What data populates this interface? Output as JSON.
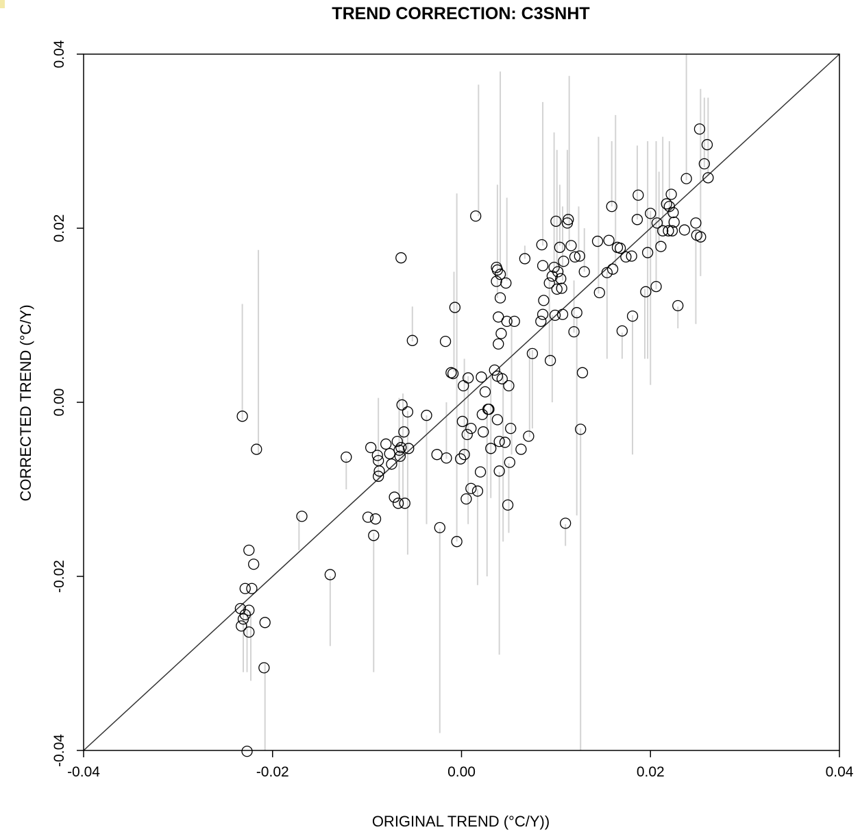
{
  "chart_data": {
    "type": "scatter",
    "title": "TREND CORRECTION: C3SNHT",
    "xlabel": "ORIGINAL TREND (°C/Y))",
    "ylabel": "CORRECTED TREND (°C/Y)",
    "xlim": [
      -0.04,
      0.04
    ],
    "ylim": [
      -0.04,
      0.04
    ],
    "x_ticks": [
      "-0.04",
      "-0.02",
      "0.00",
      "0.02",
      "0.04"
    ],
    "y_ticks": [
      "-0.04",
      "-0.02",
      "0.00",
      "0.02",
      "0.04"
    ],
    "reference_line": "y = x",
    "grid": false,
    "point_color": "#000000",
    "error_bar_color": "#d3d3d3",
    "points": [
      {
        "x": -0.0234,
        "y": -0.0237
      },
      {
        "x": -0.0233,
        "y": -0.0257
      },
      {
        "x": -0.0231,
        "y": -0.0249
      },
      {
        "x": -0.0229,
        "y": -0.0244
      },
      {
        "x": -0.0232,
        "y": -0.0016
      },
      {
        "x": -0.0229,
        "y": -0.0214
      },
      {
        "x": -0.0225,
        "y": -0.017
      },
      {
        "x": -0.0225,
        "y": -0.0239
      },
      {
        "x": -0.0225,
        "y": -0.0264
      },
      {
        "x": -0.0222,
        "y": -0.0214
      },
      {
        "x": -0.022,
        "y": -0.0186
      },
      {
        "x": -0.0217,
        "y": -0.0054
      },
      {
        "x": -0.0208,
        "y": -0.0253
      },
      {
        "x": -0.0209,
        "y": -0.0305
      },
      {
        "x": -0.0227,
        "y": -0.0401
      },
      {
        "x": -0.0169,
        "y": -0.0131
      },
      {
        "x": -0.0139,
        "y": -0.0198
      },
      {
        "x": -0.0122,
        "y": -0.0063
      },
      {
        "x": -0.0099,
        "y": -0.0132
      },
      {
        "x": -0.0096,
        "y": -0.0052
      },
      {
        "x": -0.0093,
        "y": -0.0153
      },
      {
        "x": -0.0091,
        "y": -0.0134
      },
      {
        "x": -0.0089,
        "y": -0.0061
      },
      {
        "x": -0.0088,
        "y": -0.0067
      },
      {
        "x": -0.0088,
        "y": -0.0085
      },
      {
        "x": -0.0087,
        "y": -0.0079
      },
      {
        "x": -0.008,
        "y": -0.0048
      },
      {
        "x": -0.0076,
        "y": -0.0059
      },
      {
        "x": -0.0074,
        "y": -0.0071
      },
      {
        "x": -0.0071,
        "y": -0.0109
      },
      {
        "x": -0.0068,
        "y": -0.0045
      },
      {
        "x": -0.0067,
        "y": -0.0116
      },
      {
        "x": -0.0066,
        "y": -0.0055
      },
      {
        "x": -0.0065,
        "y": -0.0062
      },
      {
        "x": -0.0064,
        "y": -0.0052
      },
      {
        "x": -0.0063,
        "y": -0.0003
      },
      {
        "x": -0.0064,
        "y": 0.0166
      },
      {
        "x": -0.0061,
        "y": -0.0034
      },
      {
        "x": -0.006,
        "y": -0.0116
      },
      {
        "x": -0.0057,
        "y": -0.0011
      },
      {
        "x": -0.0056,
        "y": -0.0053
      },
      {
        "x": -0.0052,
        "y": 0.0071
      },
      {
        "x": -0.0037,
        "y": -0.0015
      },
      {
        "x": -0.0026,
        "y": -0.006
      },
      {
        "x": -0.0023,
        "y": -0.0144
      },
      {
        "x": -0.0017,
        "y": 0.007
      },
      {
        "x": -0.0016,
        "y": -0.0064
      },
      {
        "x": -0.0011,
        "y": 0.0034
      },
      {
        "x": -0.0009,
        "y": 0.0033
      },
      {
        "x": -0.0007,
        "y": 0.0109
      },
      {
        "x": -0.0005,
        "y": -0.016
      },
      {
        "x": -0.0001,
        "y": -0.0065
      },
      {
        "x": 0.0001,
        "y": -0.0022
      },
      {
        "x": 0.0002,
        "y": 0.0019
      },
      {
        "x": 0.0003,
        "y": -0.006
      },
      {
        "x": 0.0005,
        "y": -0.0111
      },
      {
        "x": 0.0006,
        "y": -0.0037
      },
      {
        "x": 0.0007,
        "y": 0.0028
      },
      {
        "x": 0.001,
        "y": -0.003
      },
      {
        "x": 0.001,
        "y": -0.0099
      },
      {
        "x": 0.0015,
        "y": 0.0214
      },
      {
        "x": 0.0017,
        "y": -0.0102
      },
      {
        "x": 0.002,
        "y": -0.008
      },
      {
        "x": 0.0021,
        "y": 0.0029
      },
      {
        "x": 0.0022,
        "y": -0.0014
      },
      {
        "x": 0.0023,
        "y": -0.0034
      },
      {
        "x": 0.0025,
        "y": 0.0012
      },
      {
        "x": 0.0028,
        "y": -0.0008
      },
      {
        "x": 0.0029,
        "y": -0.0008
      },
      {
        "x": 0.0031,
        "y": -0.0053
      },
      {
        "x": 0.0035,
        "y": 0.0037
      },
      {
        "x": 0.0037,
        "y": 0.0155
      },
      {
        "x": 0.0037,
        "y": 0.0139
      },
      {
        "x": 0.0038,
        "y": 0.0152
      },
      {
        "x": 0.0038,
        "y": 0.003
      },
      {
        "x": 0.0038,
        "y": -0.002
      },
      {
        "x": 0.0039,
        "y": 0.0098
      },
      {
        "x": 0.0039,
        "y": 0.0067
      },
      {
        "x": 0.004,
        "y": -0.0045
      },
      {
        "x": 0.004,
        "y": -0.0079
      },
      {
        "x": 0.0041,
        "y": 0.0147
      },
      {
        "x": 0.0041,
        "y": 0.012
      },
      {
        "x": 0.0042,
        "y": 0.0079
      },
      {
        "x": 0.0043,
        "y": 0.0027
      },
      {
        "x": 0.0046,
        "y": -0.0046
      },
      {
        "x": 0.0047,
        "y": 0.0137
      },
      {
        "x": 0.0048,
        "y": 0.0093
      },
      {
        "x": 0.0049,
        "y": -0.0118
      },
      {
        "x": 0.005,
        "y": 0.0019
      },
      {
        "x": 0.0051,
        "y": -0.0069
      },
      {
        "x": 0.0052,
        "y": -0.003
      },
      {
        "x": 0.0056,
        "y": 0.0093
      },
      {
        "x": 0.0063,
        "y": -0.0054
      },
      {
        "x": 0.0067,
        "y": 0.0165
      },
      {
        "x": 0.0071,
        "y": -0.0039
      },
      {
        "x": 0.0075,
        "y": 0.0056
      },
      {
        "x": 0.0084,
        "y": 0.0093
      },
      {
        "x": 0.0085,
        "y": 0.0181
      },
      {
        "x": 0.0086,
        "y": 0.0101
      },
      {
        "x": 0.0086,
        "y": 0.0157
      },
      {
        "x": 0.0087,
        "y": 0.0117
      },
      {
        "x": 0.0093,
        "y": 0.0137
      },
      {
        "x": 0.0094,
        "y": 0.0048
      },
      {
        "x": 0.0096,
        "y": 0.0145
      },
      {
        "x": 0.0098,
        "y": 0.0155
      },
      {
        "x": 0.0099,
        "y": 0.01
      },
      {
        "x": 0.01,
        "y": 0.0208
      },
      {
        "x": 0.0101,
        "y": 0.013
      },
      {
        "x": 0.0102,
        "y": 0.015
      },
      {
        "x": 0.0104,
        "y": 0.0178
      },
      {
        "x": 0.0105,
        "y": 0.0142
      },
      {
        "x": 0.0106,
        "y": 0.0131
      },
      {
        "x": 0.0107,
        "y": 0.0101
      },
      {
        "x": 0.0108,
        "y": 0.0162
      },
      {
        "x": 0.011,
        "y": -0.0139
      },
      {
        "x": 0.0112,
        "y": 0.0206
      },
      {
        "x": 0.0113,
        "y": 0.021
      },
      {
        "x": 0.0116,
        "y": 0.018
      },
      {
        "x": 0.0119,
        "y": 0.0081
      },
      {
        "x": 0.012,
        "y": 0.0167
      },
      {
        "x": 0.0122,
        "y": 0.0103
      },
      {
        "x": 0.0125,
        "y": 0.0168
      },
      {
        "x": 0.0126,
        "y": -0.0031
      },
      {
        "x": 0.0128,
        "y": 0.0034
      },
      {
        "x": 0.013,
        "y": 0.015
      },
      {
        "x": 0.0144,
        "y": 0.0185
      },
      {
        "x": 0.0146,
        "y": 0.0126
      },
      {
        "x": 0.0154,
        "y": 0.0149
      },
      {
        "x": 0.0156,
        "y": 0.0186
      },
      {
        "x": 0.0159,
        "y": 0.0225
      },
      {
        "x": 0.016,
        "y": 0.0153
      },
      {
        "x": 0.0165,
        "y": 0.0178
      },
      {
        "x": 0.0168,
        "y": 0.0177
      },
      {
        "x": 0.017,
        "y": 0.0082
      },
      {
        "x": 0.0174,
        "y": 0.0167
      },
      {
        "x": 0.018,
        "y": 0.0168
      },
      {
        "x": 0.0181,
        "y": 0.0099
      },
      {
        "x": 0.0186,
        "y": 0.021
      },
      {
        "x": 0.0187,
        "y": 0.0238
      },
      {
        "x": 0.0195,
        "y": 0.0127
      },
      {
        "x": 0.0197,
        "y": 0.0172
      },
      {
        "x": 0.02,
        "y": 0.0217
      },
      {
        "x": 0.0206,
        "y": 0.0133
      },
      {
        "x": 0.0207,
        "y": 0.0206
      },
      {
        "x": 0.0211,
        "y": 0.0179
      },
      {
        "x": 0.0213,
        "y": 0.0197
      },
      {
        "x": 0.0217,
        "y": 0.0228
      },
      {
        "x": 0.0219,
        "y": 0.0197
      },
      {
        "x": 0.022,
        "y": 0.0225
      },
      {
        "x": 0.0222,
        "y": 0.0239
      },
      {
        "x": 0.0223,
        "y": 0.0197
      },
      {
        "x": 0.0224,
        "y": 0.0218
      },
      {
        "x": 0.0225,
        "y": 0.0207
      },
      {
        "x": 0.0229,
        "y": 0.0111
      },
      {
        "x": 0.0236,
        "y": 0.0198
      },
      {
        "x": 0.0238,
        "y": 0.0257
      },
      {
        "x": 0.0248,
        "y": 0.0206
      },
      {
        "x": 0.0249,
        "y": 0.0192
      },
      {
        "x": 0.0252,
        "y": 0.0314
      },
      {
        "x": 0.0253,
        "y": 0.019
      },
      {
        "x": 0.0257,
        "y": 0.0274
      },
      {
        "x": 0.026,
        "y": 0.0296
      },
      {
        "x": 0.0261,
        "y": 0.0258
      }
    ],
    "error_bars": [
      {
        "x": -0.0232,
        "y_low": -0.002,
        "y_high": 0.0113
      },
      {
        "x": -0.0215,
        "y_low": -0.006,
        "y_high": 0.0175
      },
      {
        "x": -0.0231,
        "y_low": -0.031,
        "y_high": -0.023
      },
      {
        "x": -0.0227,
        "y_low": -0.031,
        "y_high": -0.024
      },
      {
        "x": -0.0223,
        "y_low": -0.032,
        "y_high": -0.024
      },
      {
        "x": -0.0208,
        "y_low": -0.04,
        "y_high": -0.03
      },
      {
        "x": -0.0172,
        "y_low": -0.017,
        "y_high": -0.013
      },
      {
        "x": -0.0139,
        "y_low": -0.028,
        "y_high": -0.02
      },
      {
        "x": -0.0122,
        "y_low": -0.01,
        "y_high": -0.0065
      },
      {
        "x": -0.0093,
        "y_low": -0.031,
        "y_high": -0.015
      },
      {
        "x": -0.0088,
        "y_low": -0.009,
        "y_high": 0.0005
      },
      {
        "x": -0.0066,
        "y_low": -0.012,
        "y_high": 0.0005
      },
      {
        "x": -0.0062,
        "y_low": -0.012,
        "y_high": 0.001
      },
      {
        "x": -0.0057,
        "y_low": -0.0175,
        "y_high": -0.001
      },
      {
        "x": -0.0052,
        "y_low": 0.007,
        "y_high": 0.011
      },
      {
        "x": -0.0037,
        "y_low": -0.014,
        "y_high": -0.0015
      },
      {
        "x": -0.0023,
        "y_low": -0.038,
        "y_high": -0.0145
      },
      {
        "x": -0.0016,
        "y_low": -0.0065,
        "y_high": 0.0
      },
      {
        "x": -0.0008,
        "y_low": 0.0035,
        "y_high": 0.015
      },
      {
        "x": -0.0005,
        "y_low": -0.016,
        "y_high": 0.024
      },
      {
        "x": 0.0003,
        "y_low": -0.006,
        "y_high": 0.005
      },
      {
        "x": 0.0007,
        "y_low": -0.014,
        "y_high": 0.003
      },
      {
        "x": 0.0017,
        "y_low": -0.021,
        "y_high": -0.01
      },
      {
        "x": 0.0018,
        "y_low": 0.0214,
        "y_high": 0.0365
      },
      {
        "x": 0.0027,
        "y_low": -0.02,
        "y_high": -0.001
      },
      {
        "x": 0.0031,
        "y_low": -0.011,
        "y_high": 0.003
      },
      {
        "x": 0.0038,
        "y_low": 0.012,
        "y_high": 0.025
      },
      {
        "x": 0.004,
        "y_low": -0.029,
        "y_high": -0.008
      },
      {
        "x": 0.0041,
        "y_low": 0.015,
        "y_high": 0.038
      },
      {
        "x": 0.0044,
        "y_low": -0.016,
        "y_high": 0.003
      },
      {
        "x": 0.0048,
        "y_low": 0.014,
        "y_high": 0.0235
      },
      {
        "x": 0.005,
        "y_low": -0.015,
        "y_high": -0.007
      },
      {
        "x": 0.0053,
        "y_low": -0.006,
        "y_high": 0.0095
      },
      {
        "x": 0.0067,
        "y_low": 0.0165,
        "y_high": 0.018
      },
      {
        "x": 0.0072,
        "y_low": -0.004,
        "y_high": 0.006
      },
      {
        "x": 0.0075,
        "y_low": -0.003,
        "y_high": 0.006
      },
      {
        "x": 0.0086,
        "y_low": 0.018,
        "y_high": 0.0345
      },
      {
        "x": 0.0093,
        "y_low": 0.005,
        "y_high": 0.014
      },
      {
        "x": 0.0096,
        "y_low": 0.0,
        "y_high": 0.01
      },
      {
        "x": 0.0098,
        "y_low": 0.0155,
        "y_high": 0.031
      },
      {
        "x": 0.0101,
        "y_low": 0.013,
        "y_high": 0.029
      },
      {
        "x": 0.0104,
        "y_low": 0.018,
        "y_high": 0.025
      },
      {
        "x": 0.0107,
        "y_low": 0.014,
        "y_high": 0.0225
      },
      {
        "x": 0.011,
        "y_low": -0.0165,
        "y_high": -0.014
      },
      {
        "x": 0.0112,
        "y_low": 0.021,
        "y_high": 0.029
      },
      {
        "x": 0.0114,
        "y_low": 0.018,
        "y_high": 0.0375
      },
      {
        "x": 0.0119,
        "y_low": 0.008,
        "y_high": 0.014
      },
      {
        "x": 0.0122,
        "y_low": -0.013,
        "y_high": 0.01
      },
      {
        "x": 0.0124,
        "y_low": 0.017,
        "y_high": 0.0225
      },
      {
        "x": 0.0126,
        "y_low": -0.04,
        "y_high": -0.003
      },
      {
        "x": 0.013,
        "y_low": 0.015,
        "y_high": 0.02
      },
      {
        "x": 0.0145,
        "y_low": 0.0125,
        "y_high": 0.0305
      },
      {
        "x": 0.0154,
        "y_low": 0.005,
        "y_high": 0.015
      },
      {
        "x": 0.0159,
        "y_low": 0.0225,
        "y_high": 0.03
      },
      {
        "x": 0.0163,
        "y_low": 0.0155,
        "y_high": 0.033
      },
      {
        "x": 0.017,
        "y_low": 0.005,
        "y_high": 0.008
      },
      {
        "x": 0.0181,
        "y_low": -0.006,
        "y_high": 0.01
      },
      {
        "x": 0.0186,
        "y_low": 0.021,
        "y_high": 0.0295
      },
      {
        "x": 0.0194,
        "y_low": 0.005,
        "y_high": 0.013
      },
      {
        "x": 0.0197,
        "y_low": 0.005,
        "y_high": 0.03
      },
      {
        "x": 0.02,
        "y_low": 0.002,
        "y_high": 0.022
      },
      {
        "x": 0.0206,
        "y_low": 0.013,
        "y_high": 0.03
      },
      {
        "x": 0.0209,
        "y_low": 0.018,
        "y_high": 0.0265
      },
      {
        "x": 0.0213,
        "y_low": 0.02,
        "y_high": 0.0305
      },
      {
        "x": 0.022,
        "y_low": 0.02,
        "y_high": 0.03
      },
      {
        "x": 0.0229,
        "y_low": 0.0085,
        "y_high": 0.011
      },
      {
        "x": 0.0238,
        "y_low": 0.0255,
        "y_high": 0.04
      },
      {
        "x": 0.0248,
        "y_low": 0.009,
        "y_high": 0.02
      },
      {
        "x": 0.0253,
        "y_low": 0.0145,
        "y_high": 0.036
      },
      {
        "x": 0.0257,
        "y_low": 0.027,
        "y_high": 0.035
      },
      {
        "x": 0.0261,
        "y_low": 0.026,
        "y_high": 0.035
      }
    ]
  }
}
